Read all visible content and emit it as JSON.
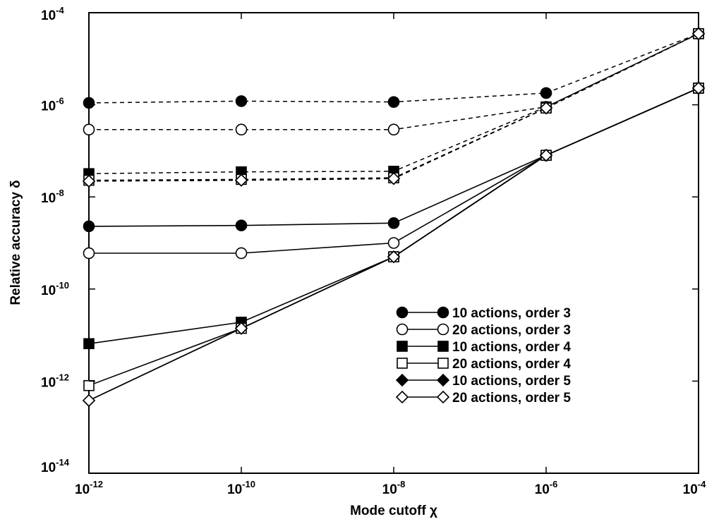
{
  "chart_data": {
    "type": "line",
    "x_scale": "log",
    "y_scale": "log",
    "xlabel": "Mode cutoff χ",
    "ylabel": "Relative accuracy δ",
    "xlim": [
      1e-12,
      0.0001
    ],
    "ylim": [
      1e-14,
      0.0001
    ],
    "x_ticks": [
      {
        "base": "10",
        "exp": "-12",
        "value": 1e-12
      },
      {
        "base": "10",
        "exp": "-10",
        "value": 1e-10
      },
      {
        "base": "10",
        "exp": "-8",
        "value": 1e-08
      },
      {
        "base": "10",
        "exp": "-6",
        "value": 1e-06
      },
      {
        "base": "10",
        "exp": "-4",
        "value": 0.0001
      }
    ],
    "y_ticks": [
      {
        "base": "10",
        "exp": "-14",
        "value": 1e-14
      },
      {
        "base": "10",
        "exp": "-12",
        "value": 1e-12
      },
      {
        "base": "10",
        "exp": "-10",
        "value": 1e-10
      },
      {
        "base": "10",
        "exp": "-8",
        "value": 1e-08
      },
      {
        "base": "10",
        "exp": "-6",
        "value": 1e-06
      },
      {
        "base": "10",
        "exp": "-4",
        "value": 0.0001
      }
    ],
    "grid": false,
    "legend_position": "bottom-right",
    "x": [
      1e-12,
      1e-10,
      1e-08,
      1e-06,
      0.0001
    ],
    "series": [
      {
        "name": "10 actions, order 3",
        "marker": "circle-filled",
        "solid": [
          2.3e-09,
          2.4e-09,
          2.7e-09,
          8e-08,
          2.3e-06
        ],
        "dashed": [
          1.1e-06,
          1.2e-06,
          1.15e-06,
          1.8e-06,
          3.5e-05
        ]
      },
      {
        "name": "20 actions, order 3",
        "marker": "circle-open",
        "solid": [
          6e-10,
          6e-10,
          1e-09,
          8e-08,
          2.3e-06
        ],
        "dashed": [
          2.9e-07,
          2.9e-07,
          2.9e-07,
          9e-07,
          3.5e-05
        ]
      },
      {
        "name": "10 actions, order 4",
        "marker": "square-filled",
        "solid": [
          6.5e-12,
          1.9e-11,
          5e-10,
          8e-08,
          2.3e-06
        ],
        "dashed": [
          3.2e-08,
          3.5e-08,
          3.6e-08,
          9e-07,
          3.5e-05
        ]
      },
      {
        "name": "20 actions, order 4",
        "marker": "square-open",
        "solid": [
          8e-13,
          1.4e-11,
          5e-10,
          8e-08,
          2.3e-06
        ],
        "dashed": [
          2.3e-08,
          2.4e-08,
          2.6e-08,
          8.5e-07,
          3.5e-05
        ]
      },
      {
        "name": "10 actions, order 5",
        "marker": "diamond-filled",
        "solid": [
          3.8e-13,
          1.4e-11,
          5e-10,
          8e-08,
          2.3e-06
        ],
        "dashed": [
          2.2e-08,
          2.3e-08,
          2.5e-08,
          8.5e-07,
          3.5e-05
        ]
      },
      {
        "name": "20 actions, order 5",
        "marker": "diamond-open",
        "solid": [
          3.8e-13,
          1.4e-11,
          5e-10,
          8e-08,
          2.3e-06
        ],
        "dashed": [
          2.2e-08,
          2.3e-08,
          2.5e-08,
          8.5e-07,
          3.5e-05
        ]
      }
    ]
  }
}
